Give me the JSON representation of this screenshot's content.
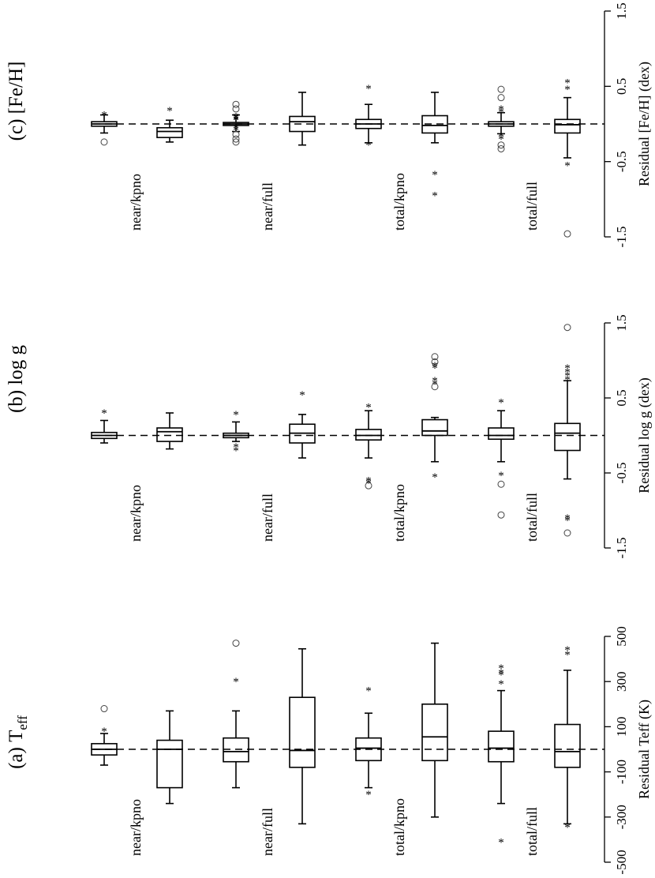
{
  "chart_data": [
    {
      "type": "box",
      "title": "[Fe/H]",
      "panel_tag": "(c)",
      "ylabel": "Residual [Fe/H] (dex)",
      "ylim": [
        -1.5,
        1.5
      ],
      "ticks": [
        "-1.5",
        "-0.5",
        "0.5",
        "1.5"
      ],
      "tick_values": [
        -1.5,
        -0.5,
        0.5,
        1.5
      ],
      "reference_line": 0,
      "group_labels": [
        "near/kpno",
        "near/full",
        "total/kpno",
        "total/full"
      ],
      "boxes": [
        {
          "group": "near/kpno",
          "whislo": -0.12,
          "q1": -0.03,
          "med": 0.0,
          "q3": 0.03,
          "whishi": 0.12,
          "star_outliers": [
            0.12
          ],
          "circle_outliers": [
            -0.24
          ]
        },
        {
          "group": "near/kpno",
          "whislo": -0.24,
          "q1": -0.18,
          "med": -0.1,
          "q3": -0.05,
          "whishi": 0.05,
          "star_outliers": [
            0.18
          ],
          "circle_outliers": []
        },
        {
          "group": "near/full",
          "whislo": -0.1,
          "q1": -0.02,
          "med": 0.0,
          "q3": 0.02,
          "whishi": 0.12,
          "star_outliers": [
            0.05,
            0.06,
            0.08,
            0.1,
            -0.05,
            -0.08
          ],
          "circle_outliers": [
            0.2,
            0.26,
            -0.14,
            -0.2,
            -0.24
          ]
        },
        {
          "group": "near/full",
          "whislo": -0.28,
          "q1": -0.1,
          "med": 0.03,
          "q3": 0.1,
          "whishi": 0.42,
          "star_outliers": [],
          "circle_outliers": []
        },
        {
          "group": "total/kpno",
          "whislo": -0.25,
          "q1": -0.06,
          "med": 0.0,
          "q3": 0.06,
          "whishi": 0.26,
          "star_outliers": [
            0.47,
            -0.28
          ],
          "circle_outliers": []
        },
        {
          "group": "total/kpno",
          "whislo": -0.25,
          "q1": -0.12,
          "med": -0.02,
          "q3": 0.11,
          "whishi": 0.42,
          "star_outliers": [
            -0.67,
            -0.95
          ],
          "circle_outliers": []
        },
        {
          "group": "total/full",
          "whislo": -0.13,
          "q1": -0.03,
          "med": 0.0,
          "q3": 0.03,
          "whishi": 0.15,
          "star_outliers": [
            0.16,
            0.2,
            -0.16,
            -0.2
          ],
          "circle_outliers": [
            0.35,
            0.46,
            -0.28,
            -0.33
          ]
        },
        {
          "group": "total/full",
          "whislo": -0.45,
          "q1": -0.12,
          "med": -0.01,
          "q3": 0.06,
          "whishi": 0.35,
          "star_outliers": [
            0.46,
            0.55,
            -0.55
          ],
          "circle_outliers": [
            -1.46
          ]
        }
      ]
    },
    {
      "type": "box",
      "title": "log g",
      "panel_tag": "(b)",
      "ylabel": "Residual log g (dex)",
      "ylim": [
        -1.5,
        1.5
      ],
      "ticks": [
        "-1.5",
        "-0.5",
        "0.5",
        "1.5"
      ],
      "tick_values": [
        -1.5,
        -0.5,
        0.5,
        1.5
      ],
      "reference_line": 0,
      "group_labels": [
        "near/kpno",
        "near/full",
        "total/kpno",
        "total/full"
      ],
      "boxes": [
        {
          "group": "near/kpno",
          "whislo": -0.1,
          "q1": -0.04,
          "med": 0.0,
          "q3": 0.04,
          "whishi": 0.2,
          "star_outliers": [
            0.3
          ],
          "circle_outliers": []
        },
        {
          "group": "near/kpno",
          "whislo": -0.18,
          "q1": -0.08,
          "med": 0.05,
          "q3": 0.1,
          "whishi": 0.3,
          "star_outliers": [],
          "circle_outliers": []
        },
        {
          "group": "near/full",
          "whislo": -0.08,
          "q1": -0.03,
          "med": 0.0,
          "q3": 0.03,
          "whishi": 0.18,
          "star_outliers": [
            0.28,
            -0.15,
            -0.2
          ],
          "circle_outliers": []
        },
        {
          "group": "near/full",
          "whislo": -0.3,
          "q1": -0.1,
          "med": 0.03,
          "q3": 0.15,
          "whishi": 0.28,
          "star_outliers": [
            0.54
          ],
          "circle_outliers": []
        },
        {
          "group": "total/kpno",
          "whislo": -0.3,
          "q1": -0.06,
          "med": 0.0,
          "q3": 0.08,
          "whishi": 0.33,
          "star_outliers": [
            0.38,
            -0.6,
            -0.63
          ],
          "circle_outliers": [
            -0.67
          ]
        },
        {
          "group": "total/kpno",
          "whislo": -0.35,
          "q1": 0.0,
          "med": 0.06,
          "q3": 0.21,
          "whishi": 0.24,
          "star_outliers": [
            0.69,
            0.73,
            0.9,
            0.93,
            -0.55
          ],
          "circle_outliers": [
            0.65,
            0.98,
            1.05
          ]
        },
        {
          "group": "total/full",
          "whislo": -0.35,
          "q1": -0.05,
          "med": 0.0,
          "q3": 0.1,
          "whishi": 0.33,
          "star_outliers": [
            0.44,
            -0.53
          ],
          "circle_outliers": [
            -0.65,
            -1.06
          ]
        },
        {
          "group": "total/full",
          "whislo": -0.58,
          "q1": -0.2,
          "med": 0.03,
          "q3": 0.16,
          "whishi": 0.73,
          "star_outliers": [
            0.75,
            0.8,
            0.85,
            0.9,
            -1.1,
            -1.13
          ],
          "circle_outliers": [
            -1.3,
            1.44
          ]
        }
      ]
    },
    {
      "type": "box",
      "title": "T",
      "title_sub": "eff",
      "panel_tag": "(a)",
      "ylabel": "Residual Teff (K)",
      "ylim": [
        -500,
        500
      ],
      "ticks": [
        "-500",
        "-300",
        "-100",
        "100",
        "300",
        "500"
      ],
      "tick_values": [
        -500,
        -300,
        -100,
        100,
        300,
        500
      ],
      "reference_line": 0,
      "group_labels": [
        "near/kpno",
        "near/full",
        "total/kpno",
        "total/full"
      ],
      "boxes": [
        {
          "group": "near/kpno",
          "whislo": -70,
          "q1": -25,
          "med": 0,
          "q3": 25,
          "whishi": 70,
          "star_outliers": [
            80
          ],
          "circle_outliers": [
            180
          ]
        },
        {
          "group": "near/kpno",
          "whislo": -240,
          "q1": -170,
          "med": 0,
          "q3": 40,
          "whishi": 170,
          "star_outliers": [],
          "circle_outliers": []
        },
        {
          "group": "near/full",
          "whislo": -170,
          "q1": -55,
          "med": -10,
          "q3": 50,
          "whishi": 170,
          "star_outliers": [
            300
          ],
          "circle_outliers": [
            470
          ]
        },
        {
          "group": "near/full",
          "whislo": -330,
          "q1": -80,
          "med": -5,
          "q3": 230,
          "whishi": 445,
          "star_outliers": [],
          "circle_outliers": []
        },
        {
          "group": "total/kpno",
          "whislo": -170,
          "q1": -50,
          "med": 5,
          "q3": 50,
          "whishi": 160,
          "star_outliers": [
            260,
            -200
          ],
          "circle_outliers": []
        },
        {
          "group": "total/kpno",
          "whislo": -300,
          "q1": -50,
          "med": 55,
          "q3": 200,
          "whishi": 470,
          "star_outliers": [],
          "circle_outliers": []
        },
        {
          "group": "total/full",
          "whislo": -240,
          "q1": -55,
          "med": 5,
          "q3": 80,
          "whishi": 260,
          "star_outliers": [
            290,
            330,
            340,
            360,
            -410
          ],
          "circle_outliers": []
        },
        {
          "group": "total/full",
          "whislo": -330,
          "q1": -80,
          "med": -10,
          "q3": 110,
          "whishi": 350,
          "star_outliers": [
            420,
            440,
            -345
          ],
          "circle_outliers": []
        }
      ]
    }
  ]
}
